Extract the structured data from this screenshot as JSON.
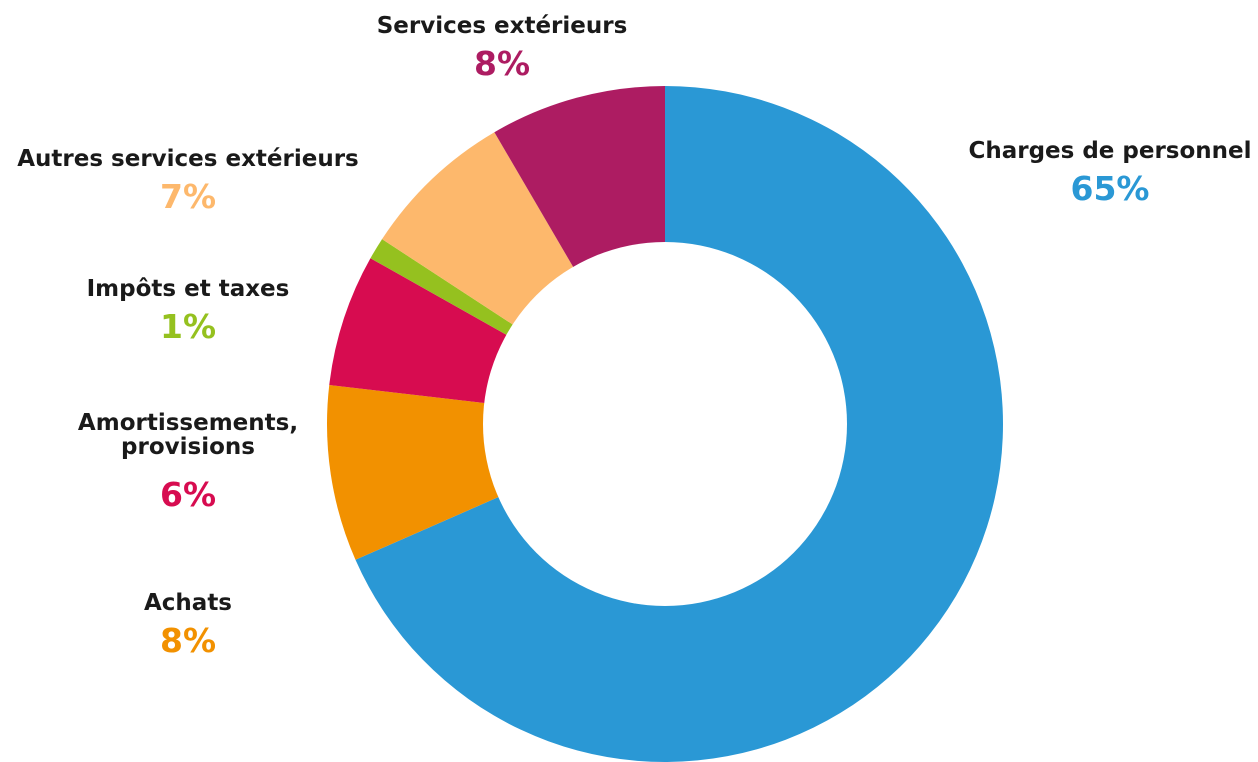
{
  "chart_data": {
    "type": "pie",
    "title": "",
    "hole": true,
    "legend": "none",
    "slices": [
      {
        "label": "Charges de personnel",
        "lines": [
          "Charges de personnel"
        ],
        "value": 65,
        "value_label": "65%",
        "color": "#2A98D5"
      },
      {
        "label": "Achats",
        "lines": [
          "Achats"
        ],
        "value": 8,
        "value_label": "8%",
        "color": "#F29100"
      },
      {
        "label": "Amortissements, provisions",
        "lines": [
          "Amortissements,",
          "provisions"
        ],
        "value": 6,
        "value_label": "6%",
        "color": "#D70C50"
      },
      {
        "label": "Impôts et taxes",
        "lines": [
          "Impôts et taxes"
        ],
        "value": 1,
        "value_label": "1%",
        "color": "#95C11F"
      },
      {
        "label": "Autres services extérieurs",
        "lines": [
          "Autres services extérieurs"
        ],
        "value": 7,
        "value_label": "7%",
        "color": "#FDB86C"
      },
      {
        "label": "Services extérieurs",
        "lines": [
          "Services extérieurs"
        ],
        "value": 8,
        "value_label": "8%",
        "color": "#AD1C62"
      }
    ]
  }
}
